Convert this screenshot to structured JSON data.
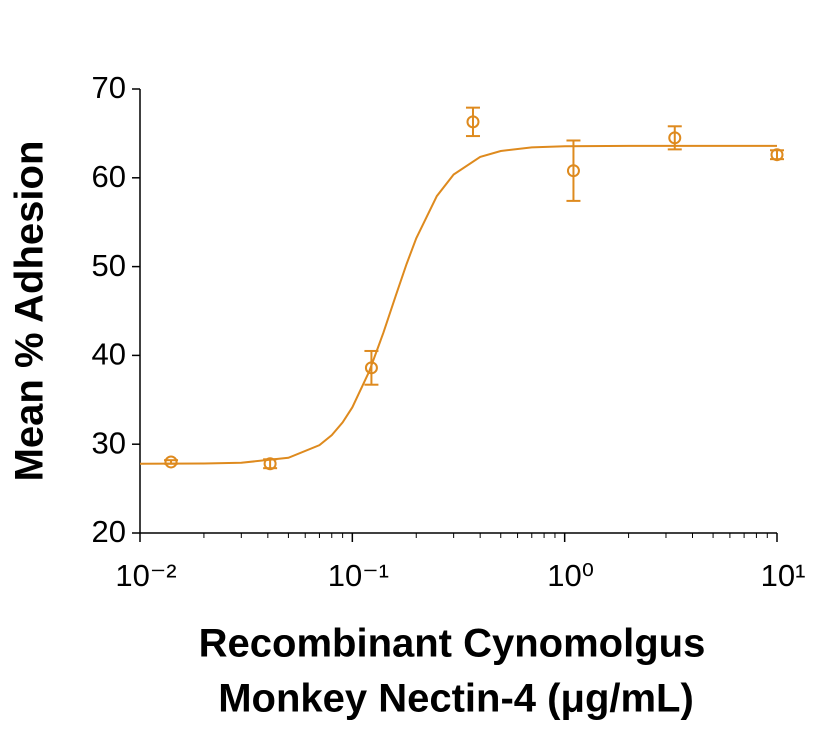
{
  "chart_data": {
    "type": "scatter",
    "xlabel": [
      "Recombinant Cynomolgus",
      "Monkey Nectin-4 (μg/mL)"
    ],
    "ylabel": "Mean % Adhesion",
    "xscale": "log",
    "color": "#de8a1e",
    "series": [
      {
        "type": "scatter",
        "x": [
          0.014,
          0.041,
          0.123,
          0.37,
          1.1,
          3.3,
          10
        ],
        "values": [
          28.0,
          27.8,
          38.6,
          66.3,
          60.8,
          64.5,
          62.6
        ],
        "errors": [
          0.2,
          0.5,
          1.9,
          1.6,
          3.4,
          1.3,
          0.5
        ]
      },
      {
        "type": "line",
        "x": [
          0.01,
          0.02,
          0.03,
          0.05,
          0.07,
          0.08,
          0.09,
          0.1,
          0.12,
          0.14,
          0.16,
          0.18,
          0.2,
          0.25,
          0.3,
          0.4,
          0.5,
          0.7,
          1,
          2,
          5,
          10
        ],
        "values": [
          27.8,
          27.83,
          27.91,
          28.47,
          29.89,
          31.02,
          32.45,
          34.15,
          38.18,
          42.54,
          46.69,
          50.28,
          53.19,
          57.94,
          60.37,
          62.35,
          63.02,
          63.42,
          63.55,
          63.59,
          63.6,
          63.6
        ]
      }
    ],
    "xlim": [
      0.01,
      10
    ],
    "xticks": [
      {
        "value": 0.01,
        "label": "10⁻²"
      },
      {
        "value": 0.1,
        "label": "10⁻¹"
      },
      {
        "value": 1,
        "label": "10⁰"
      },
      {
        "value": 10,
        "label": "10¹"
      }
    ],
    "xminorticks": [
      0.02,
      0.03,
      0.04,
      0.05,
      0.06,
      0.07,
      0.08,
      0.09,
      0.2,
      0.3,
      0.4,
      0.5,
      0.6,
      0.7,
      0.8,
      0.9,
      2,
      3,
      4,
      5,
      6,
      7,
      8,
      9
    ],
    "ylim": [
      20,
      70
    ],
    "yticks": [
      20,
      30,
      40,
      50,
      60,
      70
    ],
    "grid": false
  }
}
